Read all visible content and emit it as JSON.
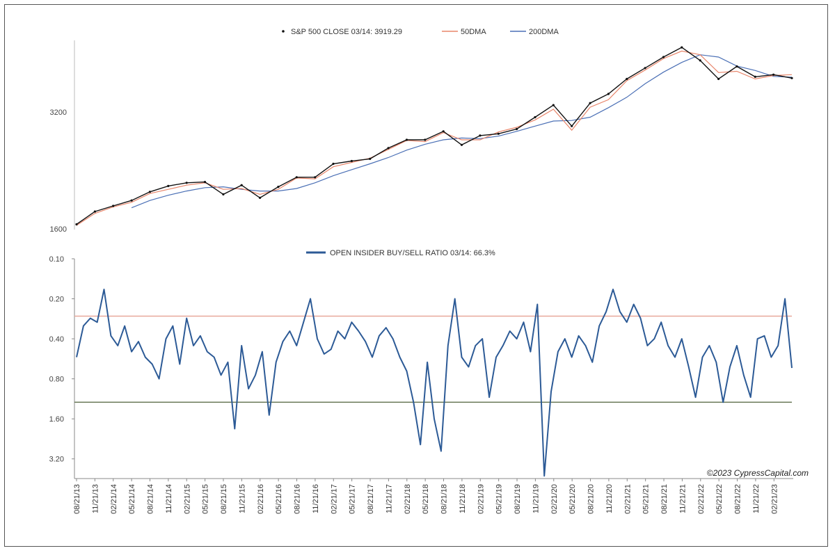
{
  "chart_data": [
    {
      "type": "line",
      "title": "",
      "legend": [
        "S&P 500 CLOSE 03/14: 3919.29",
        "50DMA",
        "200DMA"
      ],
      "legend_placement": "top-center",
      "y_ticks": [
        "3200",
        "1600"
      ],
      "ylim": [
        1600,
        4900
      ],
      "y_scale": "log",
      "colors": {
        "close": "#111111",
        "dma50": "#e8856a",
        "dma200": "#4a6fb5"
      },
      "x": [
        "2013-08-21",
        "2013-11-21",
        "2014-02-21",
        "2014-05-21",
        "2014-08-21",
        "2014-11-21",
        "2015-02-21",
        "2015-05-21",
        "2015-08-21",
        "2015-11-21",
        "2016-02-21",
        "2016-05-21",
        "2016-08-21",
        "2016-11-21",
        "2017-02-21",
        "2017-05-21",
        "2017-08-21",
        "2017-11-21",
        "2018-02-21",
        "2018-05-21",
        "2018-08-21",
        "2018-11-21",
        "2019-02-21",
        "2019-05-21",
        "2019-08-21",
        "2019-11-21",
        "2020-02-21",
        "2020-05-21",
        "2020-08-21",
        "2020-11-21",
        "2021-02-21",
        "2021-05-21",
        "2021-08-21",
        "2021-11-21",
        "2022-02-21",
        "2022-05-21",
        "2022-08-21",
        "2022-11-21",
        "2023-02-21",
        "2023-03-14"
      ],
      "series": [
        {
          "name": "S&P 500 CLOSE 03/14: 3919.29",
          "values": [
            1650,
            1780,
            1840,
            1900,
            2000,
            2070,
            2110,
            2120,
            1970,
            2080,
            1930,
            2060,
            2180,
            2180,
            2360,
            2400,
            2430,
            2590,
            2720,
            2720,
            2860,
            2640,
            2790,
            2820,
            2900,
            3110,
            3340,
            2950,
            3380,
            3570,
            3900,
            4160,
            4440,
            4700,
            4350,
            3900,
            4200,
            3950,
            4000,
            3919.29
          ]
        },
        {
          "name": "50DMA",
          "values": [
            1640,
            1760,
            1830,
            1880,
            1980,
            2030,
            2080,
            2110,
            2030,
            2040,
            1970,
            2030,
            2170,
            2160,
            2320,
            2380,
            2440,
            2570,
            2710,
            2690,
            2840,
            2720,
            2720,
            2850,
            2930,
            3060,
            3260,
            2880,
            3300,
            3450,
            3860,
            4110,
            4400,
            4600,
            4500,
            4050,
            4080,
            3900,
            3980,
            4000
          ]
        },
        {
          "name": "200DMA",
          "values": [
            null,
            null,
            null,
            1820,
            1900,
            1960,
            2010,
            2050,
            2060,
            2030,
            2010,
            2010,
            2040,
            2110,
            2200,
            2280,
            2360,
            2450,
            2560,
            2650,
            2720,
            2750,
            2740,
            2780,
            2860,
            2950,
            3040,
            3050,
            3110,
            3290,
            3500,
            3790,
            4060,
            4300,
            4500,
            4440,
            4210,
            4100,
            3960,
            3940
          ]
        }
      ]
    },
    {
      "type": "line",
      "legend": [
        "OPEN INSIDER BUY/SELL RATIO 03/14: 66.3%"
      ],
      "legend_placement": "top-center",
      "y_ticks": [
        "0.10",
        "0.20",
        "0.40",
        "0.80",
        "1.60",
        "3.20"
      ],
      "ylim": [
        0.1,
        4.5
      ],
      "y_scale": "log",
      "y_reversed": true,
      "reference_lines": [
        {
          "value": 0.27,
          "color": "#e8a89a"
        },
        {
          "value": 1.2,
          "color": "#6b7a5a"
        }
      ],
      "x_tick_labels": [
        "08/21/13",
        "11/21/13",
        "02/21/14",
        "05/21/14",
        "08/21/14",
        "11/21/14",
        "02/21/15",
        "05/21/15",
        "08/21/15",
        "11/21/15",
        "02/21/16",
        "05/21/16",
        "08/21/16",
        "11/21/16",
        "02/21/17",
        "05/21/17",
        "08/21/17",
        "11/21/17",
        "02/21/18",
        "05/21/18",
        "08/21/18",
        "11/21/18",
        "02/21/19",
        "05/21/19",
        "08/21/19",
        "11/21/19",
        "02/21/20",
        "05/21/20",
        "08/21/20",
        "11/21/20",
        "02/21/21",
        "05/21/21",
        "08/21/21",
        "11/21/21",
        "02/21/22",
        "05/21/22",
        "08/21/22",
        "11/21/22",
        "02/21/23"
      ],
      "color": "#2c5a96",
      "series": [
        {
          "name": "OPEN INSIDER BUY/SELL RATIO 03/14: 66.3%",
          "values": [
            0.55,
            0.32,
            0.28,
            0.3,
            0.17,
            0.38,
            0.45,
            0.32,
            0.5,
            0.42,
            0.55,
            0.62,
            0.8,
            0.4,
            0.32,
            0.62,
            0.28,
            0.45,
            0.38,
            0.5,
            0.55,
            0.75,
            0.6,
            1.9,
            0.45,
            0.95,
            0.75,
            0.5,
            1.5,
            0.6,
            0.42,
            0.35,
            0.45,
            0.3,
            0.2,
            0.4,
            0.52,
            0.48,
            0.35,
            0.4,
            0.3,
            0.35,
            0.42,
            0.55,
            0.38,
            0.33,
            0.4,
            0.55,
            0.7,
            1.2,
            2.5,
            0.6,
            1.6,
            2.8,
            0.45,
            0.2,
            0.55,
            0.65,
            0.45,
            0.4,
            1.1,
            0.55,
            0.45,
            0.35,
            0.4,
            0.3,
            0.5,
            0.22,
            4.3,
            1.0,
            0.5,
            0.4,
            0.55,
            0.38,
            0.45,
            0.6,
            0.32,
            0.25,
            0.17,
            0.25,
            0.3,
            0.22,
            0.28,
            0.45,
            0.4,
            0.3,
            0.45,
            0.55,
            0.4,
            0.65,
            1.1,
            0.55,
            0.45,
            0.6,
            1.2,
            0.65,
            0.45,
            0.75,
            1.1,
            0.4,
            0.38,
            0.55,
            0.45,
            0.2,
            0.663
          ]
        }
      ]
    }
  ],
  "copyright": "©2023 CypressCapital.com"
}
